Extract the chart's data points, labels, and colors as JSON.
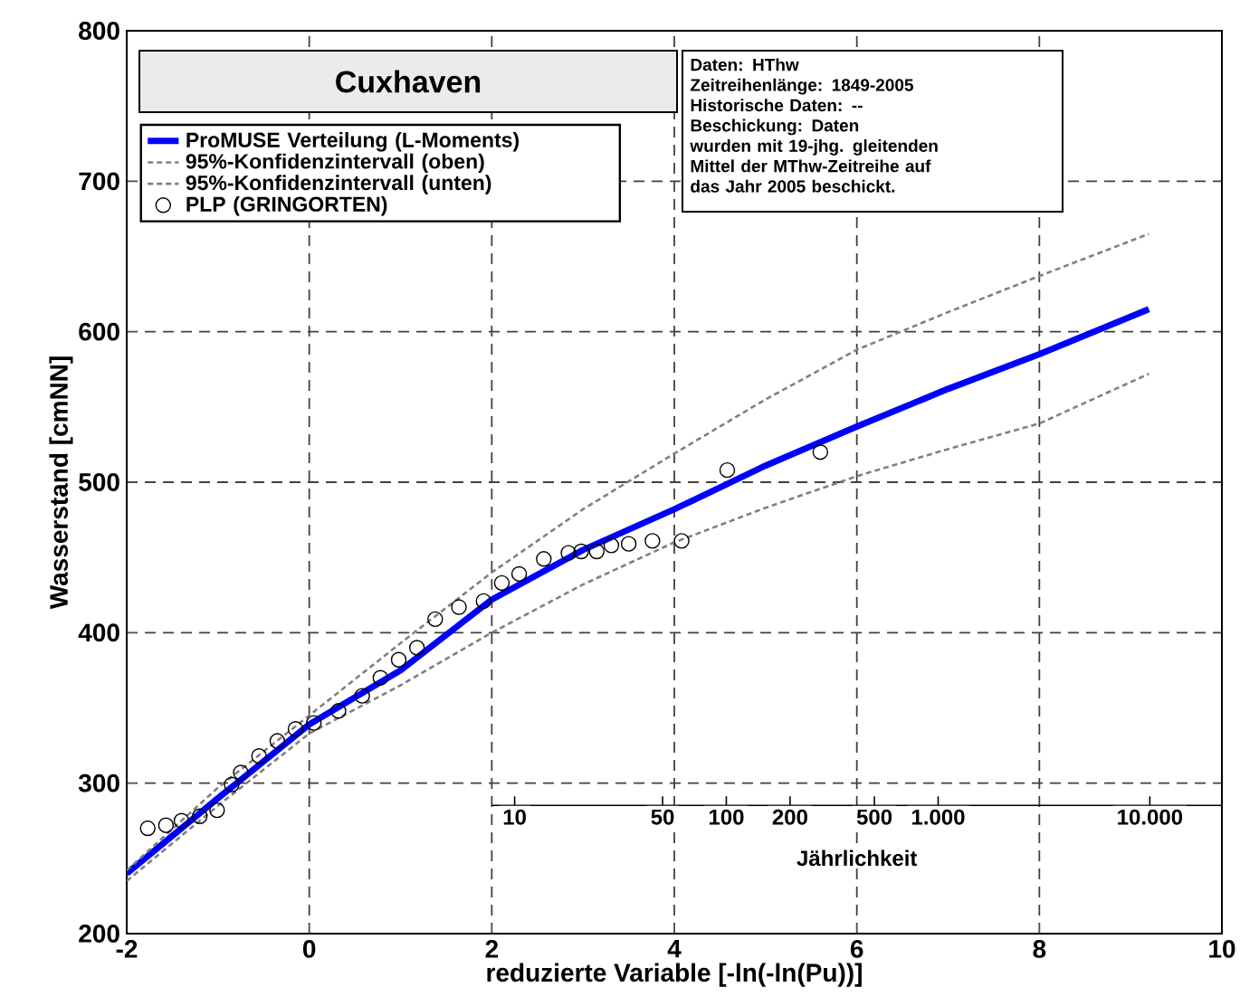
{
  "chart_data": {
    "type": "line",
    "title": "Cuxhaven",
    "xlabel": "reduzierte Variable [-ln(-ln(Pu))]",
    "ylabel": "Wasserstand [cmNN]",
    "xlim": [
      -2,
      10
    ],
    "ylim": [
      200,
      800
    ],
    "xticks": [
      -2,
      0,
      2,
      4,
      6,
      8,
      10
    ],
    "yticks": [
      200,
      300,
      400,
      500,
      600,
      700,
      800
    ],
    "x2lim": [
      7.8,
      21900
    ],
    "log": "x2",
    "x2label": "Jährlichkeit",
    "x2ticks": [
      10,
      50,
      100,
      200,
      500,
      {
        "value": 1000,
        "label": "1.000"
      },
      {
        "value": 10000,
        "label": "10.000"
      }
    ],
    "grid": true,
    "legend": "top left",
    "annotations": [
      "Daten: HThw",
      "Zeitreihenlänge: 1849-2005",
      "Historische Daten: --",
      "Beschickung: Daten",
      "wurden mit 19-jhg. gleitenden",
      "Mittel der MThw-Zeitreihe auf",
      "das Jahr 2005 beschickt."
    ],
    "series": [
      {
        "name": "ProMUSE Verteilung (L-Moments)",
        "color": "#0000ff",
        "line_style": "solid",
        "x": [
          -2,
          -1,
          0,
          1,
          2,
          3,
          4,
          5,
          6,
          7,
          8,
          9.2
        ],
        "values": [
          240,
          290,
          339,
          375,
          422,
          455,
          482,
          511,
          537,
          562,
          585,
          615
        ]
      },
      {
        "name": "95%-Konfidenzintervall (oben)",
        "color": "#808080",
        "line_style": "dashed",
        "x": [
          -2,
          -1,
          0,
          1,
          2,
          3,
          4,
          5,
          6,
          7,
          8,
          9.2
        ],
        "values": [
          242,
          297,
          345,
          393,
          440,
          482,
          519,
          555,
          588,
          613,
          637,
          665
        ]
      },
      {
        "name": "95%-Konfidenzintervall (unten)",
        "color": "#808080",
        "line_style": "dashed",
        "x": [
          -2,
          -1,
          0,
          1,
          2,
          3,
          4,
          5,
          6,
          7,
          8,
          9.2
        ],
        "values": [
          235,
          285,
          333,
          365,
          400,
          432,
          460,
          483,
          504,
          522,
          539,
          572
        ]
      },
      {
        "name": "PLP (GRINGORTEN)",
        "type": "scatter",
        "color": "#000000",
        "marker": "circle",
        "x": [
          -1.77,
          -1.57,
          -1.4,
          -1.2,
          -1.01,
          -0.85,
          -0.75,
          -0.55,
          -0.35,
          -0.15,
          0.05,
          0.32,
          0.58,
          0.78,
          0.98,
          1.18,
          1.38,
          1.64,
          1.91,
          2.11,
          2.3,
          2.57,
          2.84,
          2.98,
          3.15,
          3.31,
          3.5,
          3.76,
          4.08,
          4.58,
          5.6
        ],
        "values": [
          270,
          272,
          275,
          278,
          282,
          299,
          307,
          318,
          328,
          336,
          340,
          348,
          358,
          370,
          382,
          390,
          409,
          417,
          421,
          433,
          439,
          449,
          453,
          454,
          454,
          458,
          459,
          461,
          461,
          508,
          520
        ]
      }
    ]
  }
}
